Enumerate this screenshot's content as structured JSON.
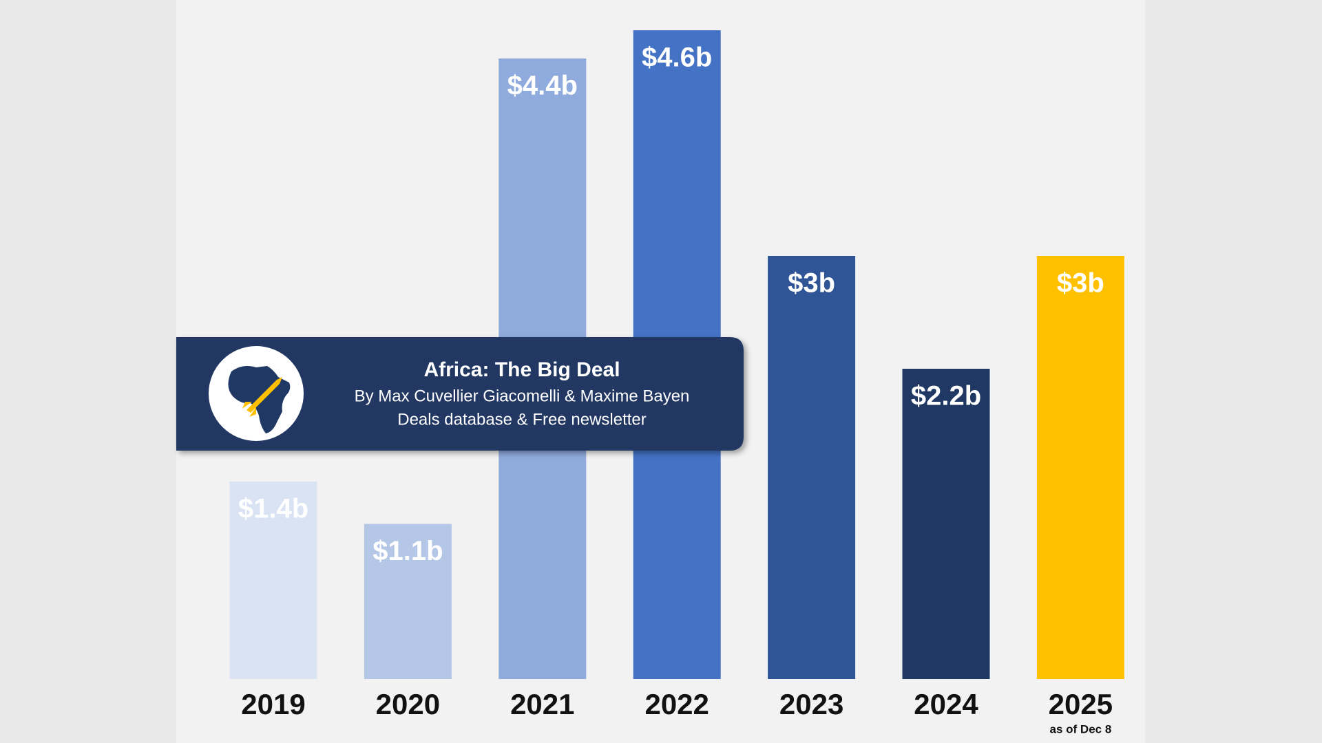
{
  "chart_data": {
    "type": "bar",
    "categories": [
      "2019",
      "2020",
      "2021",
      "2022",
      "2023",
      "2024",
      "2025"
    ],
    "values": [
      1.4,
      1.1,
      4.4,
      4.6,
      3,
      2.2,
      3
    ],
    "value_labels": [
      "$1.4b",
      "$1.1b",
      "$4.4b",
      "$4.6b",
      "$3b",
      "$2.2b",
      "$3b"
    ],
    "colors": [
      "#dae3f3",
      "#b4c7e7",
      "#8faadc",
      "#4472c4",
      "#2f5597",
      "#203864",
      "#ffc000"
    ],
    "annotation": "as of Dec 8"
  },
  "banner": {
    "title": "Africa: The Big Deal",
    "byline": "By Max Cuvellier Giacomelli & Maxime Bayen",
    "tagline": "Deals database & Free newsletter"
  }
}
